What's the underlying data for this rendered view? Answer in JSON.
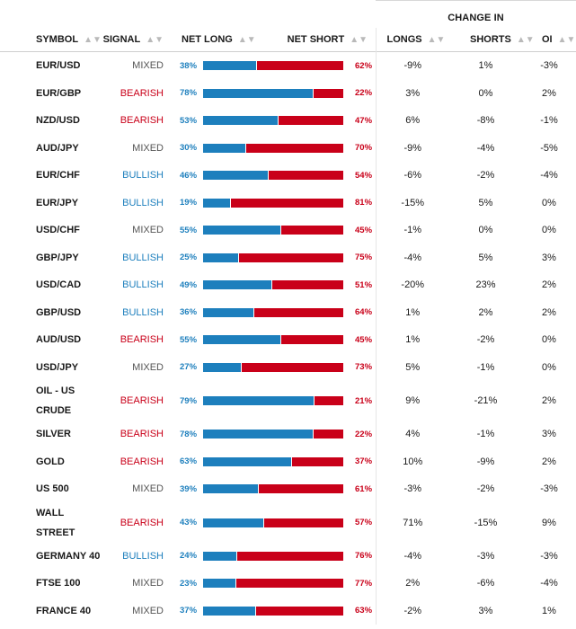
{
  "header": {
    "change_in": "CHANGE IN",
    "columns": {
      "symbol": "SYMBOL",
      "signal": "SIGNAL",
      "net_long": "NET LONG",
      "net_short": "NET SHORT",
      "longs": "LONGS",
      "shorts": "SHORTS",
      "oi": "OI"
    },
    "sort_icon": "sort-icon"
  },
  "colors": {
    "long": "#1d7fbd",
    "short": "#c90019",
    "mixed": "#555555"
  },
  "rows": [
    {
      "symbol": "EUR/USD",
      "signal": "MIXED",
      "net_long": "38%",
      "net_short": "62%",
      "longs": "-9%",
      "shorts": "1%",
      "oi": "-3%",
      "long_frac": 0.38
    },
    {
      "symbol": "EUR/GBP",
      "signal": "BEARISH",
      "net_long": "78%",
      "net_short": "22%",
      "longs": "3%",
      "shorts": "0%",
      "oi": "2%",
      "long_frac": 0.78
    },
    {
      "symbol": "NZD/USD",
      "signal": "BEARISH",
      "net_long": "53%",
      "net_short": "47%",
      "longs": "6%",
      "shorts": "-8%",
      "oi": "-1%",
      "long_frac": 0.53
    },
    {
      "symbol": "AUD/JPY",
      "signal": "MIXED",
      "net_long": "30%",
      "net_short": "70%",
      "longs": "-9%",
      "shorts": "-4%",
      "oi": "-5%",
      "long_frac": 0.3
    },
    {
      "symbol": "EUR/CHF",
      "signal": "BULLISH",
      "net_long": "46%",
      "net_short": "54%",
      "longs": "-6%",
      "shorts": "-2%",
      "oi": "-4%",
      "long_frac": 0.46
    },
    {
      "symbol": "EUR/JPY",
      "signal": "BULLISH",
      "net_long": "19%",
      "net_short": "81%",
      "longs": "-15%",
      "shorts": "5%",
      "oi": "0%",
      "long_frac": 0.19
    },
    {
      "symbol": "USD/CHF",
      "signal": "MIXED",
      "net_long": "55%",
      "net_short": "45%",
      "longs": "-1%",
      "shorts": "0%",
      "oi": "0%",
      "long_frac": 0.55
    },
    {
      "symbol": "GBP/JPY",
      "signal": "BULLISH",
      "net_long": "25%",
      "net_short": "75%",
      "longs": "-4%",
      "shorts": "5%",
      "oi": "3%",
      "long_frac": 0.25
    },
    {
      "symbol": "USD/CAD",
      "signal": "BULLISH",
      "net_long": "49%",
      "net_short": "51%",
      "longs": "-20%",
      "shorts": "23%",
      "oi": "2%",
      "long_frac": 0.49
    },
    {
      "symbol": "GBP/USD",
      "signal": "BULLISH",
      "net_long": "36%",
      "net_short": "64%",
      "longs": "1%",
      "shorts": "2%",
      "oi": "2%",
      "long_frac": 0.36
    },
    {
      "symbol": "AUD/USD",
      "signal": "BEARISH",
      "net_long": "55%",
      "net_short": "45%",
      "longs": "1%",
      "shorts": "-2%",
      "oi": "0%",
      "long_frac": 0.55
    },
    {
      "symbol": "USD/JPY",
      "signal": "MIXED",
      "net_long": "27%",
      "net_short": "73%",
      "longs": "5%",
      "shorts": "-1%",
      "oi": "0%",
      "long_frac": 0.27
    },
    {
      "symbol": "OIL - US CRUDE",
      "signal": "BEARISH",
      "net_long": "79%",
      "net_short": "21%",
      "longs": "9%",
      "shorts": "-21%",
      "oi": "2%",
      "long_frac": 0.79
    },
    {
      "symbol": "SILVER",
      "signal": "BEARISH",
      "net_long": "78%",
      "net_short": "22%",
      "longs": "4%",
      "shorts": "-1%",
      "oi": "3%",
      "long_frac": 0.78
    },
    {
      "symbol": "GOLD",
      "signal": "BEARISH",
      "net_long": "63%",
      "net_short": "37%",
      "longs": "10%",
      "shorts": "-9%",
      "oi": "2%",
      "long_frac": 0.63
    },
    {
      "symbol": "US 500",
      "signal": "MIXED",
      "net_long": "39%",
      "net_short": "61%",
      "longs": "-3%",
      "shorts": "-2%",
      "oi": "-3%",
      "long_frac": 0.39
    },
    {
      "symbol": "WALL STREET",
      "signal": "BEARISH",
      "net_long": "43%",
      "net_short": "57%",
      "longs": "71%",
      "shorts": "-15%",
      "oi": "9%",
      "long_frac": 0.43
    },
    {
      "symbol": "GERMANY 40",
      "signal": "BULLISH",
      "net_long": "24%",
      "net_short": "76%",
      "longs": "-4%",
      "shorts": "-3%",
      "oi": "-3%",
      "long_frac": 0.24
    },
    {
      "symbol": "FTSE 100",
      "signal": "MIXED",
      "net_long": "23%",
      "net_short": "77%",
      "longs": "2%",
      "shorts": "-6%",
      "oi": "-4%",
      "long_frac": 0.23
    },
    {
      "symbol": "FRANCE 40",
      "signal": "MIXED",
      "net_long": "37%",
      "net_short": "63%",
      "longs": "-2%",
      "shorts": "3%",
      "oi": "1%",
      "long_frac": 0.37
    }
  ]
}
